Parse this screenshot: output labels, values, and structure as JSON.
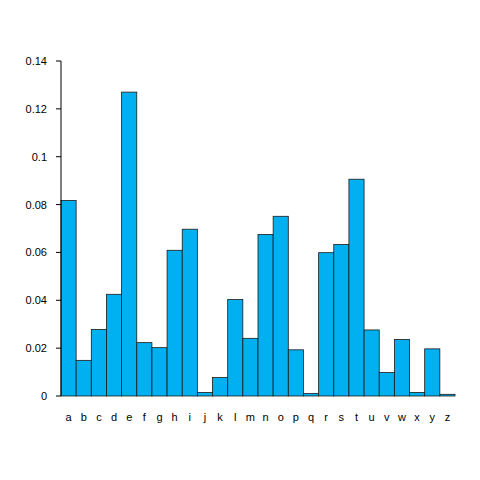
{
  "chart_data": {
    "type": "bar",
    "categories": [
      "a",
      "b",
      "c",
      "d",
      "e",
      "f",
      "g",
      "h",
      "i",
      "j",
      "k",
      "l",
      "m",
      "n",
      "o",
      "p",
      "q",
      "r",
      "s",
      "t",
      "u",
      "v",
      "w",
      "x",
      "y",
      "z"
    ],
    "values": [
      0.0817,
      0.0149,
      0.0278,
      0.0425,
      0.127,
      0.0223,
      0.0202,
      0.0609,
      0.0697,
      0.0015,
      0.0077,
      0.0403,
      0.0241,
      0.0675,
      0.0751,
      0.0193,
      0.001,
      0.0599,
      0.0633,
      0.0906,
      0.0276,
      0.0098,
      0.0236,
      0.0015,
      0.0197,
      0.0007
    ],
    "color": "#00b0f0",
    "ylim": [
      0,
      0.14
    ],
    "yticks": [
      0,
      0.02,
      0.04,
      0.06,
      0.08,
      0.1,
      0.12,
      0.14
    ],
    "grid": false
  }
}
